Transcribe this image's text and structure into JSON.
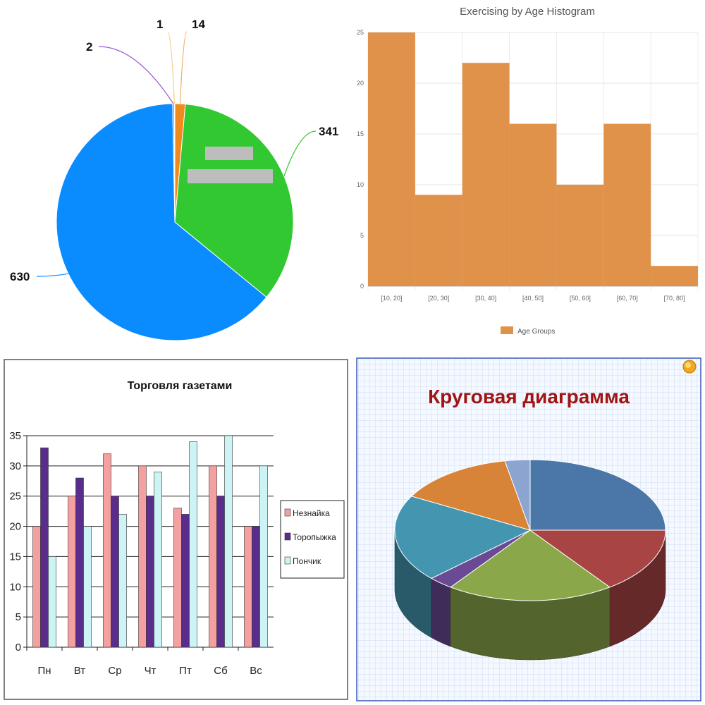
{
  "chart_data": [
    {
      "type": "pie",
      "slices": [
        {
          "value": 14,
          "label": "14",
          "color": "#f08a1c"
        },
        {
          "value": 341,
          "label": "341",
          "color": "#32c832"
        },
        {
          "value": 630,
          "label": "630",
          "color": "#0a8cff"
        },
        {
          "value": 2,
          "label": "2",
          "color": "#8a3ccc"
        },
        {
          "value": 1,
          "label": "1",
          "color": "#f0d08c"
        }
      ]
    },
    {
      "type": "bar",
      "title": "Exercising by Age Histogram",
      "categories": [
        "[10, 20]",
        "[20, 30]",
        "[30, 40]",
        "[40, 50]",
        "[50, 60]",
        "[60, 70]",
        "[70, 80]"
      ],
      "series": [
        {
          "name": "Age Groups",
          "values": [
            25,
            9,
            22,
            16,
            10,
            16,
            2
          ]
        }
      ],
      "ylim": [
        0,
        25
      ],
      "yticks": [
        "0",
        "5",
        "10",
        "15",
        "20",
        "25"
      ],
      "color": "#e0914a",
      "grid": true,
      "legend": "bottom"
    },
    {
      "type": "bar",
      "title": "Торговля газетами",
      "categories": [
        "Пн",
        "Вт",
        "Ср",
        "Чт",
        "Пт",
        "Сб",
        "Вс"
      ],
      "series": [
        {
          "name": "Незнайка",
          "values": [
            20,
            25,
            32,
            30,
            23,
            30,
            20
          ],
          "color": "#f4a0a0"
        },
        {
          "name": "Торопыжка",
          "values": [
            33,
            28,
            25,
            25,
            22,
            25,
            20
          ],
          "color": "#5a2d8c"
        },
        {
          "name": "Пончик",
          "values": [
            15,
            20,
            22,
            29,
            34,
            35,
            30
          ],
          "color": "#ccf4f4"
        }
      ],
      "ylim": [
        0,
        35
      ],
      "yticks": [
        "0",
        "5",
        "10",
        "15",
        "20",
        "25",
        "30",
        "35"
      ],
      "grid": true,
      "legend": "right"
    },
    {
      "type": "pie",
      "title": "Круговая диаграмма",
      "title_color": "#a01414",
      "style": "3d",
      "slices": [
        {
          "value": 25,
          "color": "#4a77a8"
        },
        {
          "value": 15,
          "color": "#a84444"
        },
        {
          "value": 20,
          "color": "#8aa84a"
        },
        {
          "value": 3,
          "color": "#6a4a94"
        },
        {
          "value": 20,
          "color": "#4496b0"
        },
        {
          "value": 14,
          "color": "#d88438"
        },
        {
          "value": 3,
          "color": "#8ca4d0"
        }
      ]
    }
  ]
}
